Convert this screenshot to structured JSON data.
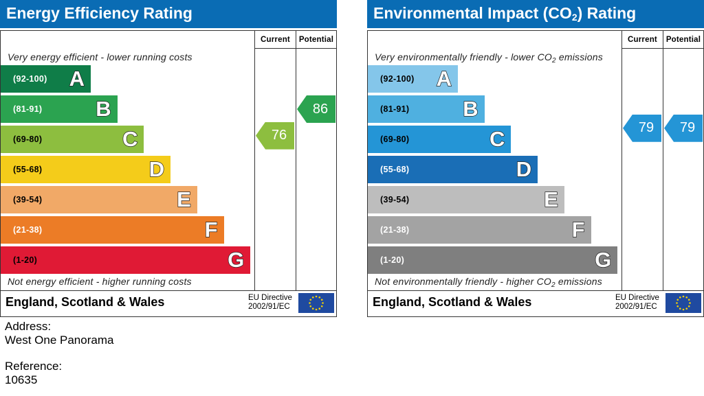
{
  "colors": {
    "header": "#0a6cb4",
    "energy_bands": [
      "#0f7d48",
      "#2ba350",
      "#8dbe3f",
      "#f4cc1a",
      "#f1a967",
      "#ec7c26",
      "#e01a35"
    ],
    "env_bands": [
      "#84c6ea",
      "#4fb0e0",
      "#2495d6",
      "#1a6eb6",
      "#bdbdbd",
      "#a3a3a3",
      "#7f7f7f"
    ]
  },
  "chart_data": [
    {
      "type": "bar",
      "title": "Energy Efficiency Rating",
      "columns": [
        "Current",
        "Potential"
      ],
      "top_caption": "Very energy efficient - lower running costs",
      "bottom_caption": "Not energy efficient - higher running costs",
      "bands": [
        {
          "range": "(92-100)",
          "letter": "A"
        },
        {
          "range": "(81-91)",
          "letter": "B"
        },
        {
          "range": "(69-80)",
          "letter": "C"
        },
        {
          "range": "(55-68)",
          "letter": "D"
        },
        {
          "range": "(39-54)",
          "letter": "E"
        },
        {
          "range": "(21-38)",
          "letter": "F"
        },
        {
          "range": "(1-20)",
          "letter": "G"
        }
      ],
      "current": 76,
      "potential": 86,
      "region": "England, Scotland & Wales",
      "directive": [
        "EU Directive",
        "2002/91/EC"
      ]
    },
    {
      "type": "bar",
      "title_parts": [
        "Environmental Impact (CO",
        "2",
        ") Rating"
      ],
      "columns": [
        "Current",
        "Potential"
      ],
      "top_caption_parts": [
        "Very environmentally friendly - lower CO",
        "2",
        " emissions"
      ],
      "bottom_caption_parts": [
        "Not environmentally friendly - higher CO",
        "2",
        " emissions"
      ],
      "bands": [
        {
          "range": "(92-100)",
          "letter": "A"
        },
        {
          "range": "(81-91)",
          "letter": "B"
        },
        {
          "range": "(69-80)",
          "letter": "C"
        },
        {
          "range": "(55-68)",
          "letter": "D"
        },
        {
          "range": "(39-54)",
          "letter": "E"
        },
        {
          "range": "(21-38)",
          "letter": "F"
        },
        {
          "range": "(1-20)",
          "letter": "G"
        }
      ],
      "current": 79,
      "potential": 79,
      "region": "England, Scotland & Wales",
      "directive": [
        "EU Directive",
        "2002/91/EC"
      ]
    }
  ],
  "info": {
    "address_label": "Address:",
    "address_value": "West One Panorama",
    "reference_label": "Reference:",
    "reference_value": "10635"
  }
}
